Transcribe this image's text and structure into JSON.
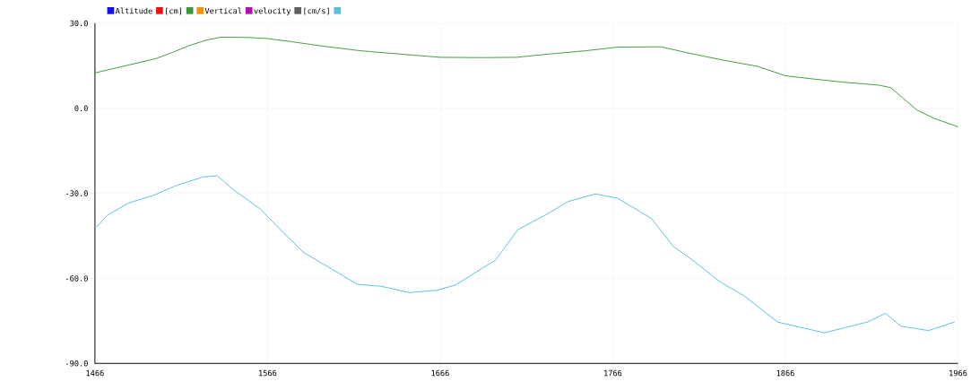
{
  "chart_data": {
    "type": "line",
    "xlim": [
      1466,
      1966
    ],
    "xticks": [
      1466,
      1566,
      1666,
      1766,
      1866,
      1966
    ],
    "ylim": [
      -90,
      30
    ],
    "yticks": [
      {
        "value": -90,
        "label": "-90.0"
      },
      {
        "value": -60,
        "label": "-60.0"
      },
      {
        "value": -30,
        "label": "-30.0"
      },
      {
        "value": 0,
        "label": "0.0"
      },
      {
        "value": 30,
        "label": "30.0"
      }
    ],
    "grid": true,
    "legend": "top left",
    "series": [
      {
        "name": "Altitude",
        "color": "#1010f0"
      },
      {
        "name": "[cm]",
        "color": "#f01010"
      },
      {
        "color": "#3c9a3c",
        "x": [
          1466,
          1480,
          1501,
          1510,
          1520,
          1530,
          1539,
          1555,
          1566,
          1580,
          1600,
          1620,
          1640,
          1660,
          1666,
          1690,
          1710,
          1730,
          1750,
          1769,
          1794,
          1810,
          1830,
          1850,
          1866,
          1880,
          1900,
          1920,
          1927,
          1942,
          1952,
          1966
        ],
        "values": [
          12.5,
          14.5,
          17.5,
          19.5,
          22,
          24,
          25.1,
          25,
          24.6,
          23.5,
          21.8,
          20.3,
          19.3,
          18.3,
          18,
          17.9,
          18,
          19.2,
          20.3,
          21.6,
          21.7,
          19.5,
          17,
          14.8,
          11.5,
          10.5,
          9.2,
          8.2,
          7.3,
          -0.5,
          -3.5,
          -6.5
        ]
      },
      {
        "name": "Vertical",
        "color": "#f59010"
      },
      {
        "name": "velocity",
        "color": "#b010b0"
      },
      {
        "name": "[cm/s]",
        "color": "#606060"
      },
      {
        "color": "#56c1d9",
        "x": [
          1467,
          1473,
          1485.5,
          1500,
          1512,
          1528.5,
          1537,
          1546,
          1562,
          1575,
          1587,
          1603.5,
          1618,
          1632,
          1648,
          1664,
          1675,
          1687,
          1698,
          1711,
          1728,
          1740,
          1756,
          1769,
          1788.5,
          1801,
          1813.5,
          1828,
          1842,
          1861.5,
          1888.5,
          1913.5,
          1924,
          1933,
          1949,
          1964
        ],
        "values": [
          -41.9,
          -37.8,
          -33.4,
          -30.7,
          -27.5,
          -24.2,
          -23.8,
          -28.6,
          -35.6,
          -43.8,
          -50.9,
          -56.8,
          -62.1,
          -62.8,
          -65,
          -64.2,
          -62.3,
          -57.7,
          -53.6,
          -42.8,
          -37.3,
          -32.9,
          -30.2,
          -31.8,
          -38.9,
          -48.7,
          -54.1,
          -61.2,
          -66.1,
          -75.4,
          -79.2,
          -75.4,
          -72.3,
          -76.9,
          -78.4,
          -75.4
        ]
      }
    ]
  }
}
